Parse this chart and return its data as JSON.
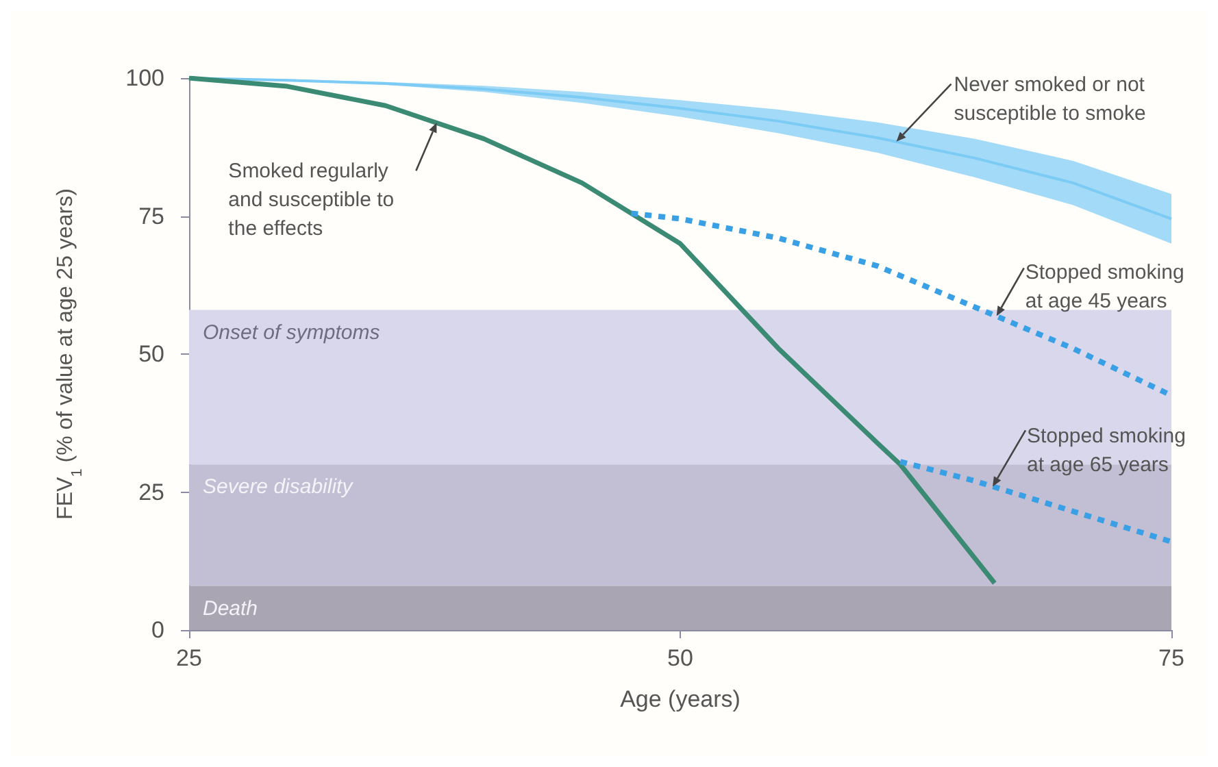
{
  "chart_data": {
    "type": "line",
    "xlabel": "Age (years)",
    "ylabel": "FEV$_{1}$ (% of value at age 25 years)",
    "xlim": [
      25,
      75
    ],
    "xticks": [
      25,
      50,
      75
    ],
    "ylim": [
      0,
      100
    ],
    "yticks": [
      0,
      25,
      50,
      75,
      100
    ],
    "grid": false,
    "marker": "none",
    "bands": [
      {
        "axis": "y",
        "from": 30,
        "to": 58,
        "label": "Onset of symptoms",
        "color": "#d9d7ec"
      },
      {
        "axis": "y",
        "from": 8,
        "to": 30,
        "label": "Severe disability",
        "color": "#c2bed3"
      },
      {
        "axis": "y",
        "from": 0,
        "to": 8,
        "label": "Death",
        "color": "#a9a5b3"
      }
    ],
    "series": [
      {
        "color": "#7ccbf5",
        "x": [
          25,
          30,
          35,
          40,
          45,
          50,
          55,
          60,
          65,
          70,
          75
        ],
        "values": [
          100,
          99.6,
          99,
          98,
          96.5,
          94.5,
          92.2,
          89.2,
          85.5,
          81,
          74.5
        ],
        "lower": [
          100,
          99.5,
          98.8,
          97.5,
          95.5,
          93,
          90,
          86.5,
          82,
          77,
          70
        ],
        "upper": [
          100,
          99.8,
          99.3,
          98.6,
          97.5,
          96,
          94.3,
          92,
          89,
          85,
          79
        ]
      },
      {
        "color": "#3a8a74",
        "line_style": "solid",
        "x": [
          25,
          30,
          35,
          40,
          45,
          50,
          55,
          60,
          61.2,
          66
        ],
        "values": [
          100,
          98.5,
          95,
          89,
          81,
          70,
          51,
          34,
          30,
          8.5
        ]
      },
      {
        "color": "#3aa0e6",
        "line_style": "dashed",
        "x": [
          47.5,
          50,
          55,
          60,
          65,
          70,
          75
        ],
        "values": [
          75.5,
          74.5,
          71,
          66,
          58.5,
          51,
          42.5
        ]
      },
      {
        "color": "#3aa0e6",
        "line_style": "dashed",
        "x": [
          61.2,
          65,
          70,
          75
        ],
        "values": [
          30.5,
          27,
          21.5,
          16
        ]
      }
    ],
    "annotations": [
      {
        "text": "Never smoked or not\nsusceptible to smoke",
        "x": 61,
        "y": 88.5
      },
      {
        "text": "Smoked regularly\nand susceptible to\nthe effects",
        "x": 37.6,
        "y": 91.9
      },
      {
        "text": "Stopped smoking\nat age 45 years",
        "x": 66.1,
        "y": 56.9
      },
      {
        "text": "Stopped smoking\nat age 65 years",
        "x": 65.9,
        "y": 26
      }
    ]
  }
}
